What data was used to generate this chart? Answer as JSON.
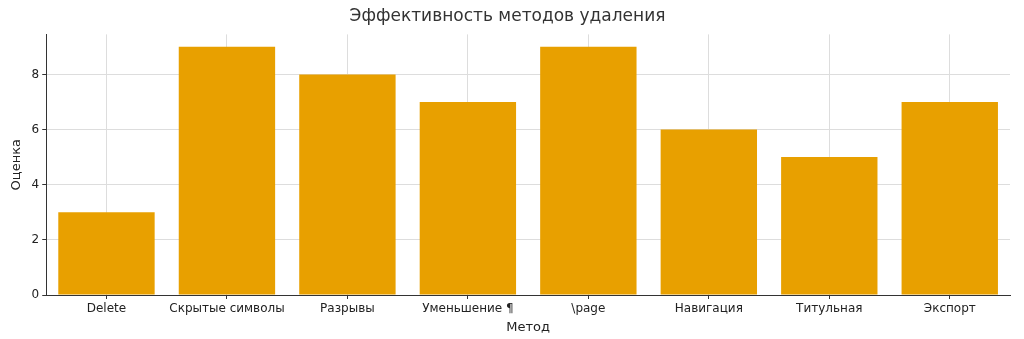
{
  "chart_data": {
    "type": "bar",
    "title": "Эффективность методов удаления",
    "xlabel": "Метод",
    "ylabel": "Оценка",
    "categories": [
      "Delete",
      "Скрытые символы",
      "Разрывы",
      "Уменьшение ¶",
      "\\page",
      "Навигация",
      "Титульная",
      "Экспорт"
    ],
    "values": [
      3,
      9,
      8,
      7,
      9,
      6,
      5,
      7
    ],
    "color": "#e8a000",
    "ylim": [
      0,
      9.45
    ],
    "yticks": [
      0,
      2,
      4,
      6,
      8
    ],
    "grid": true
  }
}
